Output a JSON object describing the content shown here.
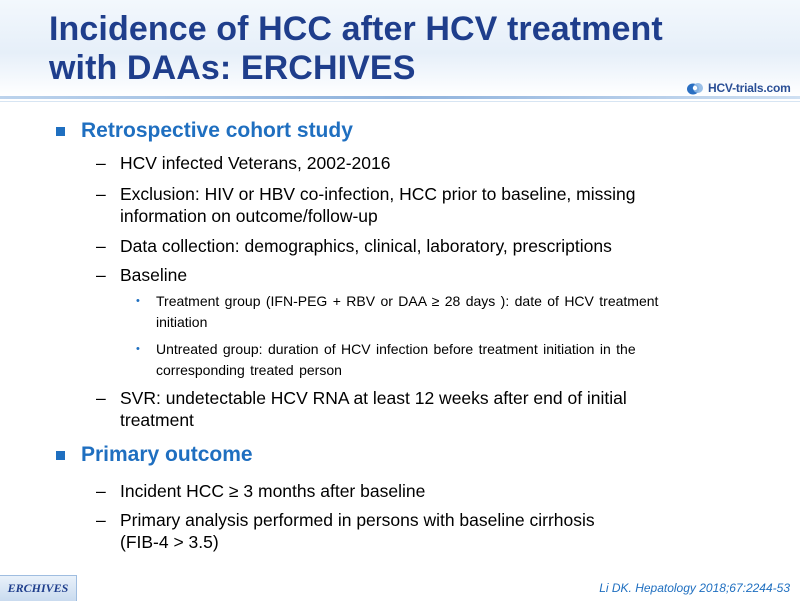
{
  "slide": {
    "title_line1": "Incidence of HCC after HCV treatment",
    "title_line2": "with DAAs: ERCHIVES",
    "logo_text": "HCV-trials.com"
  },
  "sections": [
    {
      "heading": "Retrospective cohort study",
      "items": [
        {
          "text": "HCV infected Veterans, 2002-2016"
        },
        {
          "line1": "Exclusion: HIV or HBV co-infection, HCC prior to baseline, missing",
          "line2": "information on outcome/follow-up"
        },
        {
          "text": "Data collection: demographics, clinical, laboratory, prescriptions"
        },
        {
          "text": "Baseline",
          "subitems": [
            {
              "line1": "Treatment group (IFN-PEG + RBV or DAA ≥ 28 days ): date of HCV treatment",
              "line2": "initiation"
            },
            {
              "line1": "Untreated group: duration of HCV infection before treatment initiation in the",
              "line2": "corresponding treated person"
            }
          ]
        },
        {
          "line1": "SVR: undetectable HCV RNA at least 12 weeks after end of initial",
          "line2": "treatment"
        }
      ]
    },
    {
      "heading": "Primary outcome",
      "items": [
        {
          "text": "Incident HCC ≥ 3 months after baseline"
        },
        {
          "line1": "Primary analysis performed in persons with baseline cirrhosis",
          "line2": "(FIB-4 > 3.5)"
        }
      ]
    }
  ],
  "footer": {
    "tag": "ERCHIVES",
    "citation": "Li DK. Hepatology 2018;67:2244-53"
  },
  "glyphs": {
    "dash": "–",
    "dot": "•"
  },
  "colors": {
    "title": "#1f3e8c",
    "accent": "#1f6fc0"
  }
}
